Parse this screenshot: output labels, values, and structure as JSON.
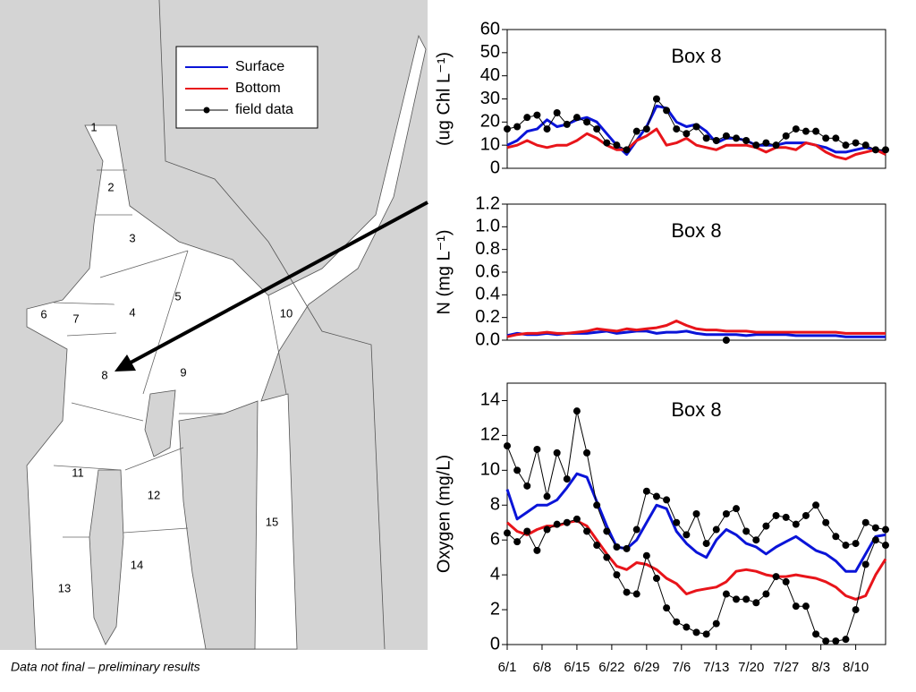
{
  "map": {
    "labels": [
      "1",
      "2",
      "3",
      "4",
      "5",
      "6",
      "7",
      "8",
      "9",
      "10",
      "11",
      "12",
      "13",
      "14",
      "15"
    ],
    "note": "Data not final – preliminary results"
  },
  "chart_data": [
    {
      "type": "line",
      "title": "Box 8",
      "ylabel": "(ug Chl L⁻¹)",
      "xlim": [
        0,
        76
      ],
      "ylim": [
        0,
        60
      ],
      "yticks": [
        0,
        10,
        20,
        30,
        40,
        50,
        60
      ],
      "x": [
        0,
        2,
        4,
        6,
        8,
        10,
        12,
        14,
        16,
        18,
        20,
        22,
        24,
        26,
        28,
        30,
        32,
        34,
        36,
        38,
        40,
        42,
        44,
        46,
        48,
        50,
        52,
        54,
        56,
        58,
        60,
        62,
        64,
        66,
        68,
        70,
        72,
        74,
        76
      ],
      "series": [
        {
          "name": "Surface",
          "color": "#0a14d8",
          "values": [
            10,
            12,
            16,
            17,
            21,
            18,
            19,
            21,
            22,
            20,
            15,
            10,
            6,
            12,
            18,
            27,
            26,
            20,
            18,
            19,
            16,
            11,
            13,
            13,
            12,
            10,
            10,
            10,
            11,
            11,
            11,
            10,
            9,
            7,
            7,
            8,
            9,
            8,
            7
          ]
        },
        {
          "name": "Bottom",
          "color": "#e8141a",
          "values": [
            9,
            10,
            12,
            10,
            9,
            10,
            10,
            12,
            15,
            13,
            10,
            8,
            8,
            12,
            14,
            17,
            10,
            11,
            13,
            10,
            9,
            8,
            10,
            10,
            10,
            9,
            7,
            9,
            9,
            8,
            11,
            10,
            7,
            5,
            4,
            6,
            7,
            8,
            6
          ]
        },
        {
          "name": "field data",
          "color": "#000000",
          "marker": "o",
          "values": [
            17,
            18,
            22,
            23,
            17,
            24,
            19,
            22,
            20,
            17,
            11,
            10,
            8,
            16,
            17,
            30,
            25,
            17,
            15,
            18,
            13,
            12,
            14,
            13,
            12,
            10,
            11,
            10,
            14,
            17,
            16,
            16,
            13,
            13,
            10,
            11,
            10,
            8,
            8
          ]
        }
      ]
    },
    {
      "type": "line",
      "title": "Box 8",
      "ylabel": "N (mg L⁻¹)",
      "xlim": [
        0,
        76
      ],
      "ylim": [
        0,
        1.2
      ],
      "yticks": [
        {
          "value": 0,
          "label": "0.0"
        },
        0.2,
        0.4,
        0.6,
        0.8,
        {
          "value": 1,
          "label": "1.0"
        },
        1.2
      ],
      "x": [
        0,
        2,
        4,
        6,
        8,
        10,
        12,
        14,
        16,
        18,
        20,
        22,
        24,
        26,
        28,
        30,
        32,
        34,
        36,
        38,
        40,
        42,
        44,
        46,
        48,
        50,
        52,
        54,
        56,
        58,
        60,
        62,
        64,
        66,
        68,
        70,
        72,
        74,
        76
      ],
      "series": [
        {
          "name": "Surface",
          "color": "#0a14d8",
          "values": [
            0.04,
            0.06,
            0.05,
            0.05,
            0.06,
            0.05,
            0.06,
            0.06,
            0.06,
            0.07,
            0.08,
            0.06,
            0.07,
            0.08,
            0.08,
            0.06,
            0.07,
            0.07,
            0.08,
            0.06,
            0.05,
            0.05,
            0.05,
            0.05,
            0.04,
            0.05,
            0.05,
            0.05,
            0.05,
            0.04,
            0.04,
            0.04,
            0.04,
            0.04,
            0.03,
            0.03,
            0.03,
            0.03,
            0.03
          ]
        },
        {
          "name": "Bottom",
          "color": "#e8141a",
          "values": [
            0.03,
            0.05,
            0.06,
            0.06,
            0.07,
            0.06,
            0.06,
            0.07,
            0.08,
            0.1,
            0.09,
            0.08,
            0.1,
            0.09,
            0.1,
            0.11,
            0.13,
            0.17,
            0.13,
            0.1,
            0.09,
            0.09,
            0.08,
            0.08,
            0.08,
            0.07,
            0.07,
            0.07,
            0.07,
            0.07,
            0.07,
            0.07,
            0.07,
            0.07,
            0.06,
            0.06,
            0.06,
            0.06,
            0.06
          ]
        },
        {
          "name": "field data",
          "color": "#000000",
          "marker": "o",
          "values": [
            null,
            null,
            null,
            null,
            null,
            null,
            null,
            null,
            null,
            null,
            null,
            null,
            null,
            null,
            null,
            null,
            null,
            null,
            null,
            null,
            null,
            null,
            0,
            null,
            null,
            null,
            null,
            null,
            null,
            null,
            null,
            null,
            null,
            null,
            null,
            null,
            null,
            null,
            null
          ]
        }
      ]
    },
    {
      "type": "line",
      "title": "Box 8",
      "ylabel": "Oxygen (mg/L)",
      "xlim": [
        0,
        76
      ],
      "ylim": [
        0,
        15
      ],
      "yticks": [
        0,
        2,
        4,
        6,
        8,
        10,
        12,
        14
      ],
      "xticks": [
        {
          "value": 0,
          "label": "6/1"
        },
        {
          "value": 7,
          "label": "6/8"
        },
        {
          "value": 14,
          "label": "6/15"
        },
        {
          "value": 21,
          "label": "6/22"
        },
        {
          "value": 28,
          "label": "6/29"
        },
        {
          "value": 35,
          "label": "7/6"
        },
        {
          "value": 42,
          "label": "7/13"
        },
        {
          "value": 49,
          "label": "7/20"
        },
        {
          "value": 56,
          "label": "7/27"
        },
        {
          "value": 63,
          "label": "8/3"
        },
        {
          "value": 70,
          "label": "8/10"
        }
      ],
      "x": [
        0,
        2,
        4,
        6,
        8,
        10,
        12,
        14,
        16,
        18,
        20,
        22,
        24,
        26,
        28,
        30,
        32,
        34,
        36,
        38,
        40,
        42,
        44,
        46,
        48,
        50,
        52,
        54,
        56,
        58,
        60,
        62,
        64,
        66,
        68,
        70,
        72,
        74,
        76
      ],
      "series": [
        {
          "name": "Surface",
          "color": "#0a14d8",
          "values": [
            8.9,
            7.2,
            7.6,
            8.0,
            8.0,
            8.3,
            9.0,
            9.8,
            9.6,
            8.2,
            6.8,
            5.6,
            5.5,
            6.0,
            7.0,
            8.0,
            7.8,
            6.5,
            5.8,
            5.3,
            5.0,
            6.0,
            6.6,
            6.3,
            5.8,
            5.6,
            5.2,
            5.6,
            5.9,
            6.2,
            5.8,
            5.4,
            5.2,
            4.8,
            4.2,
            4.2,
            5.2,
            6.2,
            6.3
          ]
        },
        {
          "name": "Bottom",
          "color": "#e8141a",
          "values": [
            7.0,
            6.5,
            6.3,
            6.6,
            6.8,
            6.8,
            7.0,
            7.1,
            6.8,
            6.0,
            5.2,
            4.5,
            4.3,
            4.7,
            4.6,
            4.3,
            3.8,
            3.5,
            2.9,
            3.1,
            3.2,
            3.3,
            3.6,
            4.2,
            4.3,
            4.2,
            4.0,
            3.9,
            3.9,
            4.0,
            3.9,
            3.8,
            3.6,
            3.3,
            2.8,
            2.6,
            2.8,
            4.0,
            4.9
          ]
        },
        {
          "name": "field data",
          "color": "#000000",
          "marker": "o",
          "values": [
            11.4,
            10.0,
            9.1,
            11.2,
            8.5,
            11.0,
            9.5,
            13.4,
            11.0,
            8.0,
            6.5,
            5.6,
            5.5,
            6.6,
            8.8,
            8.5,
            8.3,
            7.0,
            6.3,
            7.5,
            5.8,
            6.6,
            7.5,
            7.8,
            6.5,
            6.0,
            6.8,
            7.4,
            7.3,
            6.9,
            7.4,
            8.0,
            7.0,
            6.2,
            5.7,
            5.8,
            7.0,
            6.7,
            6.6
          ]
        },
        {
          "color": "#000000",
          "marker": "o",
          "values": [
            6.4,
            5.9,
            6.5,
            5.4,
            6.6,
            6.9,
            7.0,
            7.2,
            6.5,
            5.7,
            5.0,
            4.0,
            3.0,
            2.9,
            5.1,
            3.8,
            2.1,
            1.3,
            1.0,
            0.7,
            0.6,
            1.2,
            2.9,
            2.6,
            2.6,
            2.4,
            2.9,
            3.9,
            3.6,
            2.2,
            2.2,
            0.6,
            0.2,
            0.2,
            0.3,
            2.0,
            4.6,
            6.0,
            5.7
          ]
        }
      ]
    }
  ]
}
